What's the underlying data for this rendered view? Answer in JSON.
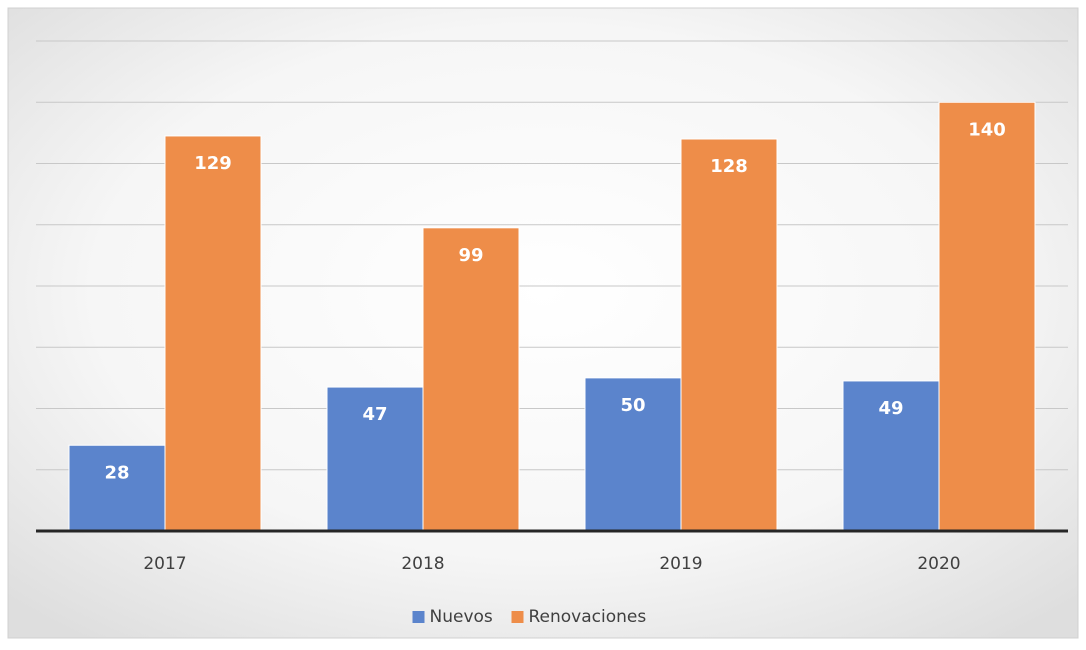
{
  "chart_data": {
    "type": "bar",
    "categories": [
      "2017",
      "2018",
      "2019",
      "2020"
    ],
    "series": [
      {
        "name": "Nuevos",
        "color": "#5b84cc",
        "values": [
          28,
          47,
          50,
          49
        ]
      },
      {
        "name": "Renovaciones",
        "color": "#ee8d49",
        "values": [
          129,
          99,
          128,
          140
        ]
      }
    ],
    "ylim": [
      0,
      160
    ],
    "yticks": [
      0,
      20,
      40,
      60,
      80,
      100,
      120,
      140,
      160
    ],
    "grid": true,
    "legend": "bottom"
  }
}
